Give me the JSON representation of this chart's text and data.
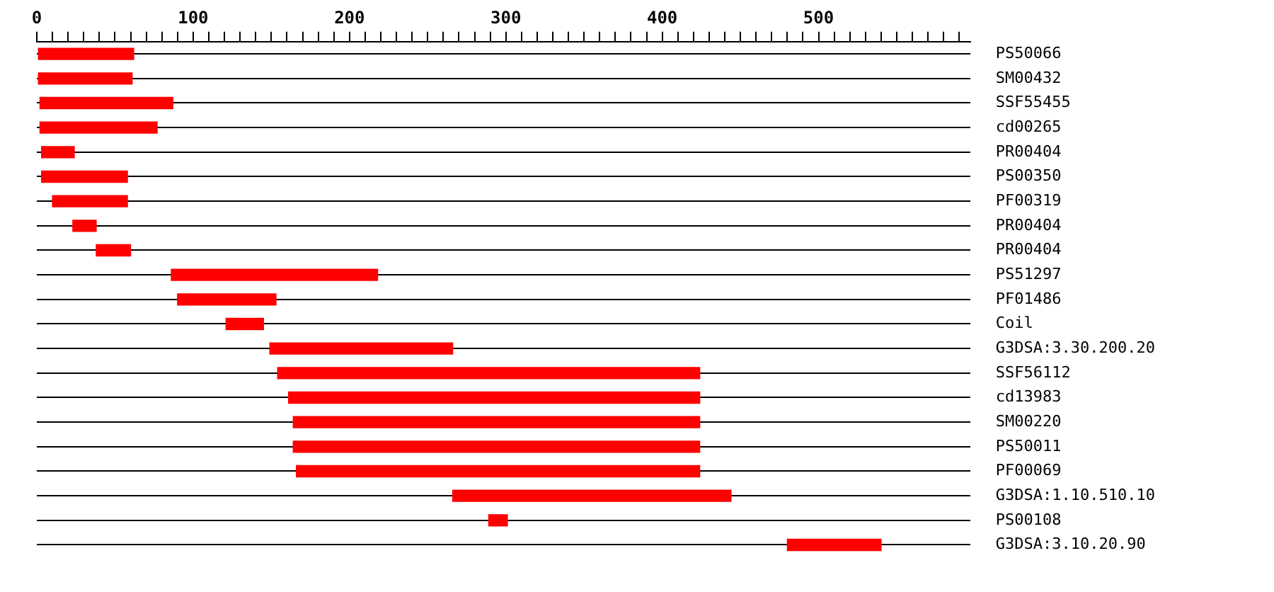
{
  "chart_data": {
    "type": "bar",
    "orientation": "horizontal",
    "grid": "y",
    "legend": false,
    "color": "#ff0000",
    "categories": [
      "PS50066",
      "SM00432",
      "SSF55455",
      "cd00265",
      "PR00404",
      "PS00350",
      "PF00319",
      "PR00404",
      "PR00404",
      "PS51297",
      "PF01486",
      "Coil",
      "G3DSA:3.30.200.20",
      "SSF56112",
      "cd13983",
      "SM00220",
      "PS50011",
      "PF00069",
      "G3DSA:1.10.510.10",
      "PS00108",
      "G3DSA:3.10.20.90"
    ],
    "base": [
      1,
      1,
      2,
      2,
      3,
      3,
      10,
      23,
      38,
      86,
      90,
      121,
      149,
      154,
      161,
      164,
      164,
      166,
      266,
      289,
      480
    ],
    "values": [
      61,
      60,
      85,
      75,
      21,
      55,
      48,
      15,
      22,
      132,
      63,
      24,
      117,
      270,
      263,
      260,
      260,
      258,
      178,
      12,
      60
    ],
    "xlim": [
      0,
      597
    ],
    "xticks": [
      0,
      {
        "value": 10,
        "label": null
      },
      {
        "value": 20,
        "label": null
      },
      {
        "value": 30,
        "label": null
      },
      {
        "value": 40,
        "label": null
      },
      {
        "value": 50,
        "label": null
      },
      {
        "value": 60,
        "label": null
      },
      {
        "value": 70,
        "label": null
      },
      {
        "value": 80,
        "label": null
      },
      {
        "value": 90,
        "label": null
      },
      100,
      {
        "value": 110,
        "label": null
      },
      {
        "value": 120,
        "label": null
      },
      {
        "value": 130,
        "label": null
      },
      {
        "value": 140,
        "label": null
      },
      {
        "value": 150,
        "label": null
      },
      {
        "value": 160,
        "label": null
      },
      {
        "value": 170,
        "label": null
      },
      {
        "value": 180,
        "label": null
      },
      {
        "value": 190,
        "label": null
      },
      200,
      {
        "value": 210,
        "label": null
      },
      {
        "value": 220,
        "label": null
      },
      {
        "value": 230,
        "label": null
      },
      {
        "value": 240,
        "label": null
      },
      {
        "value": 250,
        "label": null
      },
      {
        "value": 260,
        "label": null
      },
      {
        "value": 270,
        "label": null
      },
      {
        "value": 280,
        "label": null
      },
      {
        "value": 290,
        "label": null
      },
      300,
      {
        "value": 310,
        "label": null
      },
      {
        "value": 320,
        "label": null
      },
      {
        "value": 330,
        "label": null
      },
      {
        "value": 340,
        "label": null
      },
      {
        "value": 350,
        "label": null
      },
      {
        "value": 360,
        "label": null
      },
      {
        "value": 370,
        "label": null
      },
      {
        "value": 380,
        "label": null
      },
      {
        "value": 390,
        "label": null
      },
      400,
      {
        "value": 410,
        "label": null
      },
      {
        "value": 420,
        "label": null
      },
      {
        "value": 430,
        "label": null
      },
      {
        "value": 440,
        "label": null
      },
      {
        "value": 450,
        "label": null
      },
      {
        "value": 460,
        "label": null
      },
      {
        "value": 470,
        "label": null
      },
      {
        "value": 480,
        "label": null
      },
      {
        "value": 490,
        "label": null
      },
      500,
      {
        "value": 510,
        "label": null
      },
      {
        "value": 520,
        "label": null
      },
      {
        "value": 530,
        "label": null
      },
      {
        "value": 540,
        "label": null
      },
      {
        "value": 550,
        "label": null
      },
      {
        "value": 560,
        "label": null
      },
      {
        "value": 570,
        "label": null
      },
      {
        "value": 580,
        "label": null
      },
      {
        "value": 590,
        "label": null
      }
    ]
  }
}
